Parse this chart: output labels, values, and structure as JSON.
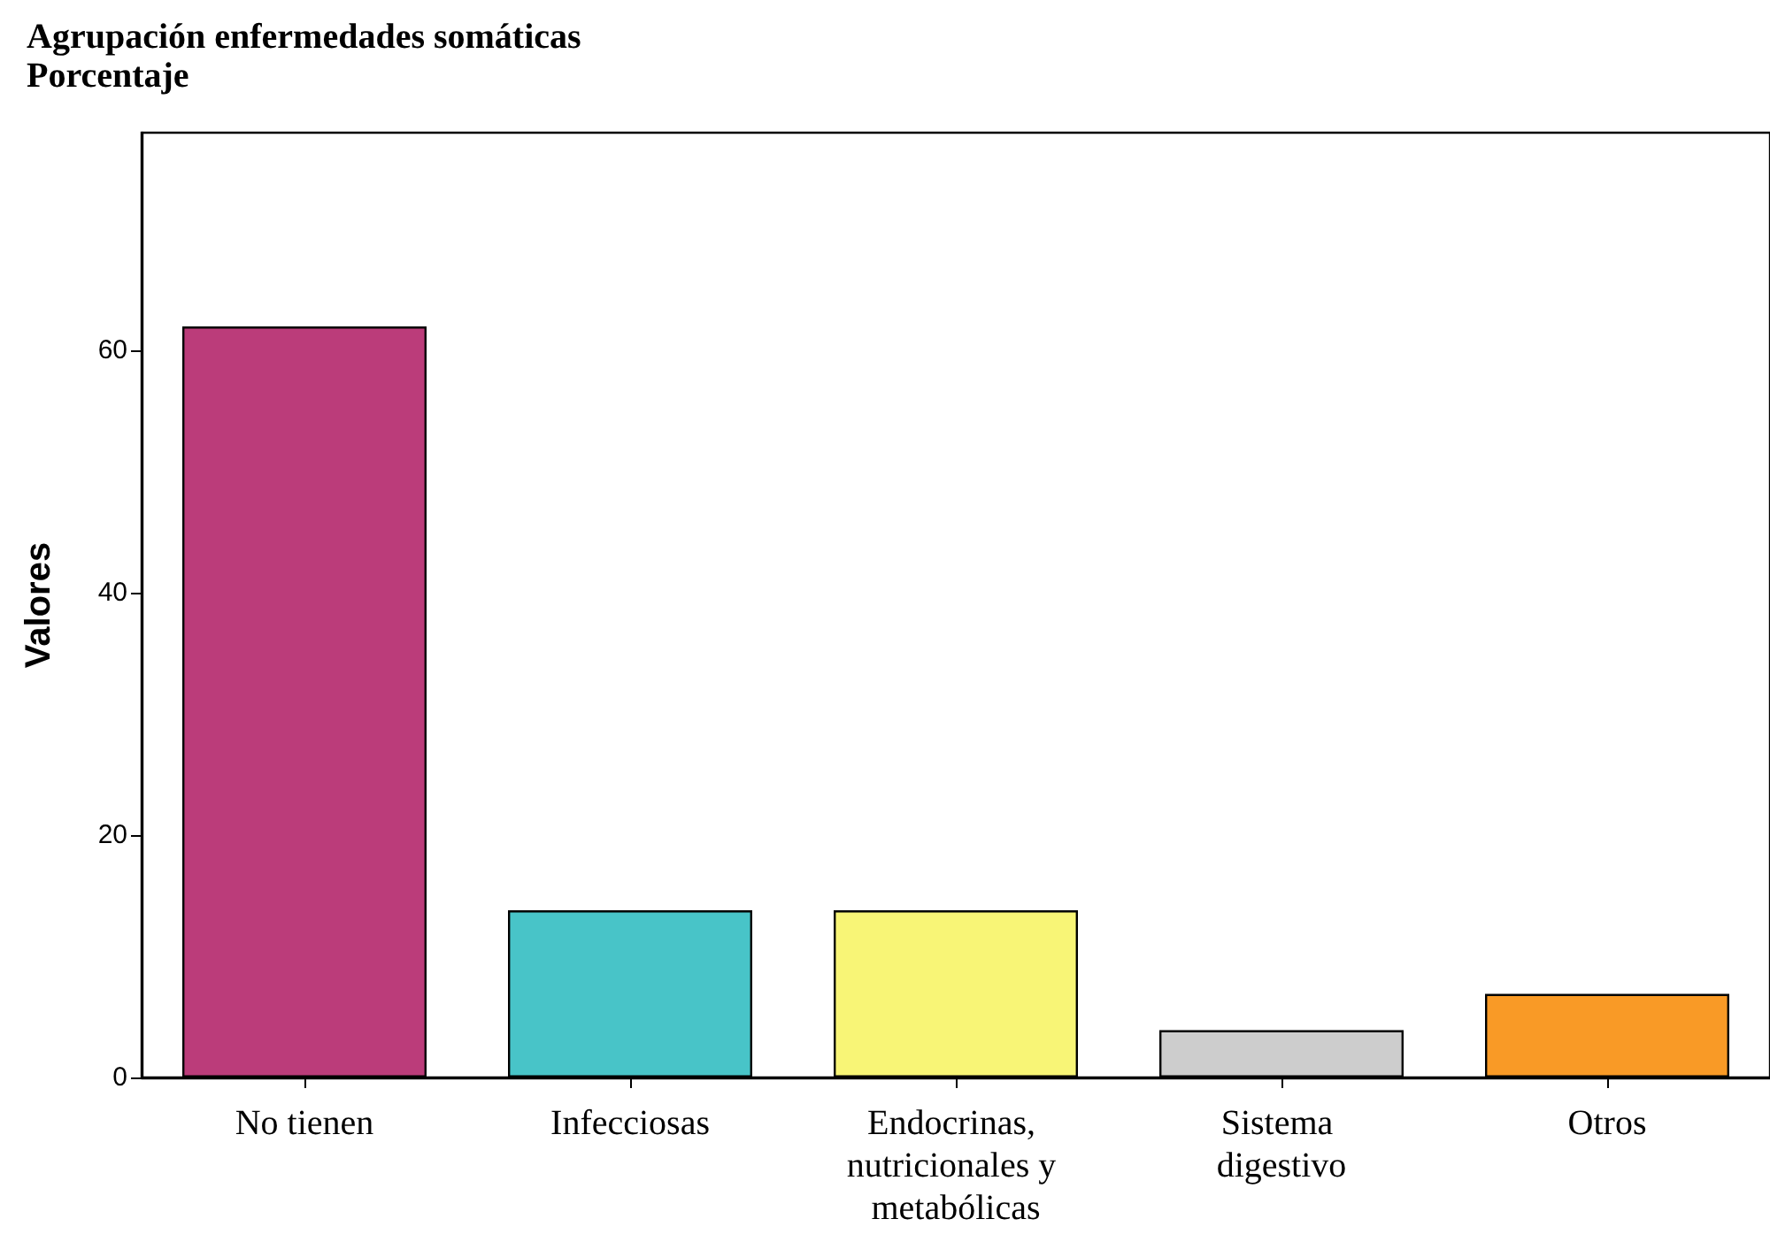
{
  "chart_data": {
    "type": "bar",
    "title": "Agrupación enfermedades somáticas",
    "subtitle": "Porcentaje",
    "ylabel": "Valores",
    "categories": [
      "No tienen",
      "Infecciosas",
      "Endocrinas, nutricionales y metabólicas",
      "Sistema digestivo",
      "Otros"
    ],
    "values": [
      62,
      13.8,
      13.8,
      3.9,
      6.9
    ],
    "colors": [
      "#bb3c7a",
      "#48c4c8",
      "#f8f576",
      "#cdcdcd",
      "#f99a26"
    ],
    "ylim": [
      0,
      78
    ],
    "yticks": [
      0,
      20,
      40,
      60
    ]
  }
}
